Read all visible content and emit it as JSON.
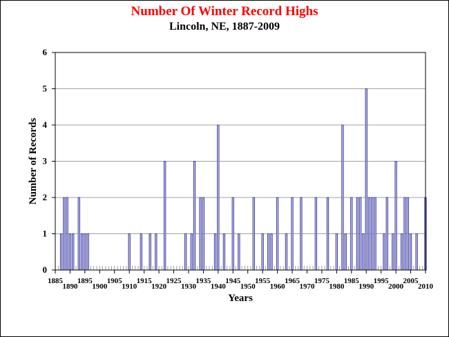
{
  "chart_data": {
    "type": "bar",
    "title": "Number Of Winter Record Highs",
    "subtitle": "Lincoln, NE, 1887-2009",
    "xlabel": "Years",
    "ylabel": "Number of Records",
    "xlim": [
      1885,
      2010
    ],
    "ylim": [
      0,
      6
    ],
    "yticks": [
      0,
      1,
      2,
      3,
      4,
      5,
      6
    ],
    "xticks": [
      1885,
      1890,
      1895,
      1900,
      1905,
      1910,
      1915,
      1920,
      1925,
      1930,
      1935,
      1940,
      1945,
      1950,
      1955,
      1960,
      1965,
      1970,
      1975,
      1980,
      1985,
      1990,
      1995,
      2000,
      2005,
      2010
    ],
    "grid": "horizontal",
    "bar_color": "#c8c8f0",
    "bar_edge_color": "#4040a0",
    "x": [
      1887,
      1888,
      1889,
      1890,
      1891,
      1893,
      1894,
      1895,
      1896,
      1910,
      1914,
      1917,
      1919,
      1922,
      1929,
      1931,
      1932,
      1934,
      1935,
      1939,
      1940,
      1942,
      1945,
      1947,
      1952,
      1955,
      1957,
      1958,
      1960,
      1963,
      1965,
      1968,
      1973,
      1977,
      1980,
      1982,
      1983,
      1985,
      1987,
      1988,
      1989,
      1990,
      1991,
      1992,
      1993,
      1996,
      1997,
      1999,
      2000,
      2002,
      2003,
      2004,
      2005,
      2007,
      2010
    ],
    "values": [
      1,
      2,
      2,
      1,
      1,
      2,
      1,
      1,
      1,
      1,
      1,
      1,
      1,
      3,
      1,
      1,
      3,
      2,
      2,
      1,
      4,
      1,
      2,
      1,
      2,
      1,
      1,
      1,
      2,
      1,
      2,
      2,
      2,
      2,
      1,
      4,
      1,
      2,
      2,
      2,
      1,
      5,
      2,
      2,
      2,
      1,
      2,
      1,
      3,
      1,
      2,
      2,
      1,
      1,
      2
    ]
  }
}
